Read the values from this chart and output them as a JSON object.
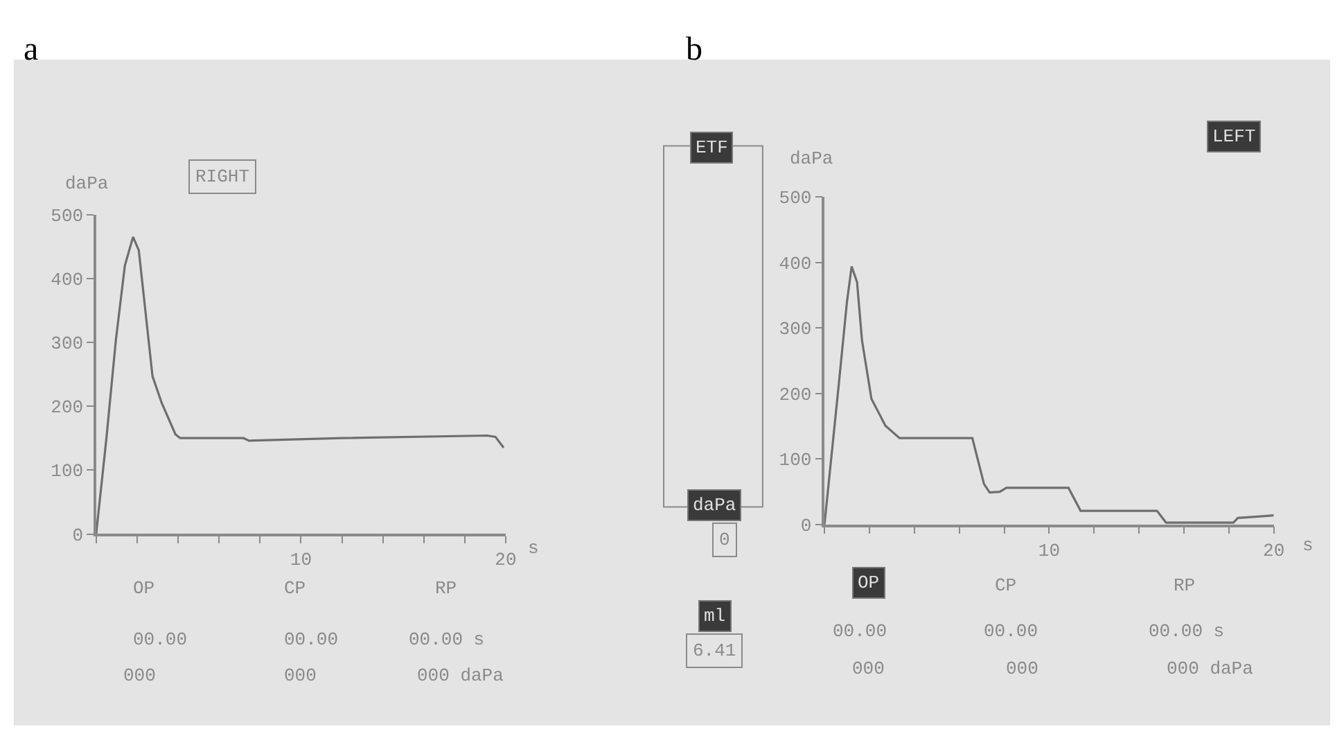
{
  "chart_data": [
    {
      "type": "line",
      "ylabel": "daPa",
      "xlabel": "s",
      "marker": "none",
      "line_style": "solid",
      "grid": false,
      "annotations": [
        "a",
        "RIGHT",
        "OP",
        "CP",
        "RP",
        "00.00",
        "00.00",
        "00.00 s",
        "000",
        "000",
        "000 daPa"
      ],
      "xlim": [
        0,
        20
      ],
      "ylim": [
        0,
        500
      ],
      "xticks": [
        {
          "value": 0,
          "label": null
        },
        {
          "value": 2,
          "label": null
        },
        {
          "value": 4,
          "label": null
        },
        {
          "value": 6,
          "label": null
        },
        {
          "value": 8,
          "label": null
        },
        10,
        {
          "value": 12,
          "label": null
        },
        {
          "value": 14,
          "label": null
        },
        {
          "value": 16,
          "label": null
        },
        {
          "value": 18,
          "label": null
        },
        20
      ],
      "yticks": [
        0,
        100,
        200,
        300,
        400,
        500
      ],
      "x": [
        0,
        0.5,
        0.96,
        1.4,
        1.8,
        2.08,
        2.4,
        2.75,
        3.2,
        3.87,
        4.1,
        7.2,
        7.46,
        12,
        19.1,
        19.5,
        19.9
      ],
      "series": [
        {
          "color": "#6e6e6e",
          "values": [
            0,
            150,
            303,
            420,
            465,
            444,
            350,
            247,
            205,
            156,
            150,
            150,
            146,
            150,
            154,
            152,
            135
          ]
        }
      ]
    },
    {
      "type": "other",
      "annotations": [
        "ETF",
        "daPa",
        "0",
        "ml",
        "6.41"
      ]
    },
    {
      "type": "line",
      "ylabel": "daPa",
      "xlabel": "s",
      "marker": "none",
      "line_style": "solid",
      "grid": false,
      "annotations": [
        "b",
        "LEFT",
        "OP",
        "CP",
        "RP",
        "00.00",
        "00.00",
        "00.00 s",
        "000",
        "000",
        "000 daPa"
      ],
      "xlim": [
        0,
        20
      ],
      "ylim": [
        0,
        500
      ],
      "xticks": [
        {
          "value": 0,
          "label": null
        },
        {
          "value": 2,
          "label": null
        },
        {
          "value": 4,
          "label": null
        },
        {
          "value": 6,
          "label": null
        },
        {
          "value": 8,
          "label": null
        },
        10,
        {
          "value": 12,
          "label": null
        },
        {
          "value": 14,
          "label": null
        },
        {
          "value": 16,
          "label": null
        },
        {
          "value": 18,
          "label": null
        },
        20
      ],
      "yticks": [
        0,
        100,
        200,
        300,
        400,
        500
      ],
      "x": [
        0,
        0.63,
        1.0,
        1.21,
        1.45,
        1.67,
        2.09,
        2.71,
        3.34,
        6.58,
        7.1,
        7.35,
        7.8,
        8.1,
        10.86,
        11.4,
        14.8,
        15.2,
        18.2,
        18.4,
        19.2,
        20
      ],
      "series": [
        {
          "color": "#6e6e6e",
          "values": [
            0,
            212,
            340,
            394,
            370,
            281,
            192,
            151,
            132,
            132,
            62,
            49,
            50,
            56,
            56,
            21,
            21,
            3,
            3,
            10,
            12,
            14
          ]
        }
      ]
    }
  ]
}
